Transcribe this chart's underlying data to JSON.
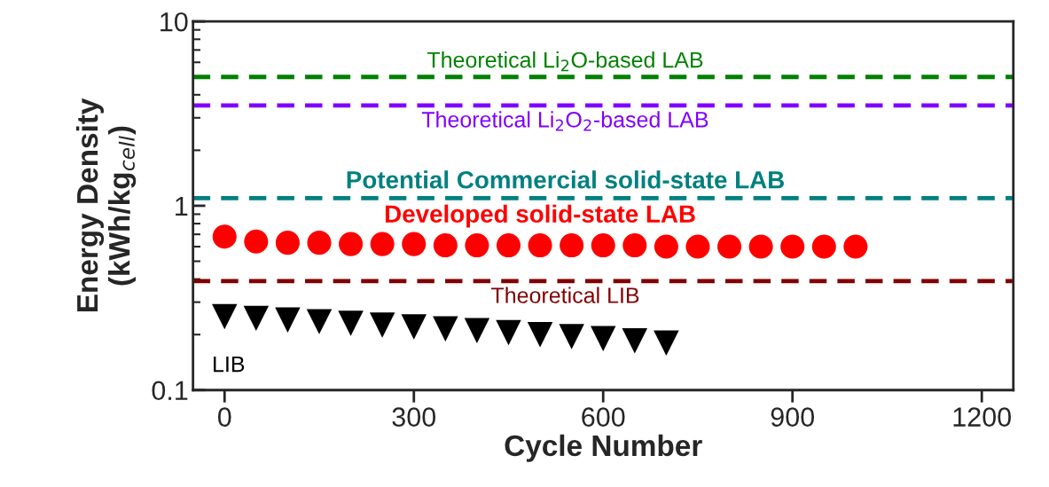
{
  "chart_data": {
    "type": "scatter",
    "xlabel": "Cycle Number",
    "ylabel": "Energy Density\n(kWh/kg$_{cell}$)",
    "series": [
      {
        "name": "Developed solid-state LAB",
        "color": "#ff0000",
        "marker": "circle",
        "x": [
          0,
          50,
          100,
          150,
          200,
          250,
          300,
          350,
          400,
          450,
          500,
          550,
          600,
          650,
          700,
          750,
          800,
          850,
          900,
          950,
          1000
        ],
        "values": [
          0.68,
          0.64,
          0.63,
          0.63,
          0.62,
          0.62,
          0.62,
          0.61,
          0.61,
          0.61,
          0.61,
          0.61,
          0.61,
          0.61,
          0.6,
          0.6,
          0.6,
          0.6,
          0.6,
          0.6,
          0.6
        ]
      },
      {
        "name": "LIB",
        "color": "#000000",
        "marker": "triangle",
        "x": [
          0,
          50,
          100,
          150,
          200,
          250,
          300,
          350,
          400,
          450,
          500,
          550,
          600,
          650,
          700
        ],
        "values": [
          0.25,
          0.245,
          0.24,
          0.235,
          0.23,
          0.225,
          0.22,
          0.215,
          0.21,
          0.205,
          0.2,
          0.195,
          0.19,
          0.185,
          0.18
        ]
      }
    ],
    "ref_lines": [
      {
        "axis": "y",
        "value": 5.0,
        "label": "Theoretical Li$_{2}$O-based LAB",
        "color": "#008000",
        "line_style": "dashed"
      },
      {
        "axis": "y",
        "value": 3.5,
        "label": "Theoretical Li$_{2}$O$_{2}$-based LAB",
        "color": "#8000ff",
        "line_style": "dashed"
      },
      {
        "axis": "y",
        "value": 1.1,
        "label": "Potential Commercial solid-state LAB",
        "color": "#008080",
        "line_style": "dashed"
      },
      {
        "axis": "y",
        "value": 0.39,
        "label": "Theoretical LIB",
        "color": "#800000",
        "line_style": "dashed"
      }
    ],
    "log": "y",
    "xlim": [
      -50,
      1250
    ],
    "xticks": [
      0,
      300,
      600,
      900,
      1200
    ],
    "ylim": [
      0.1,
      10
    ],
    "yticks": [
      0.1,
      1,
      10
    ],
    "grid": false,
    "legend": false
  }
}
